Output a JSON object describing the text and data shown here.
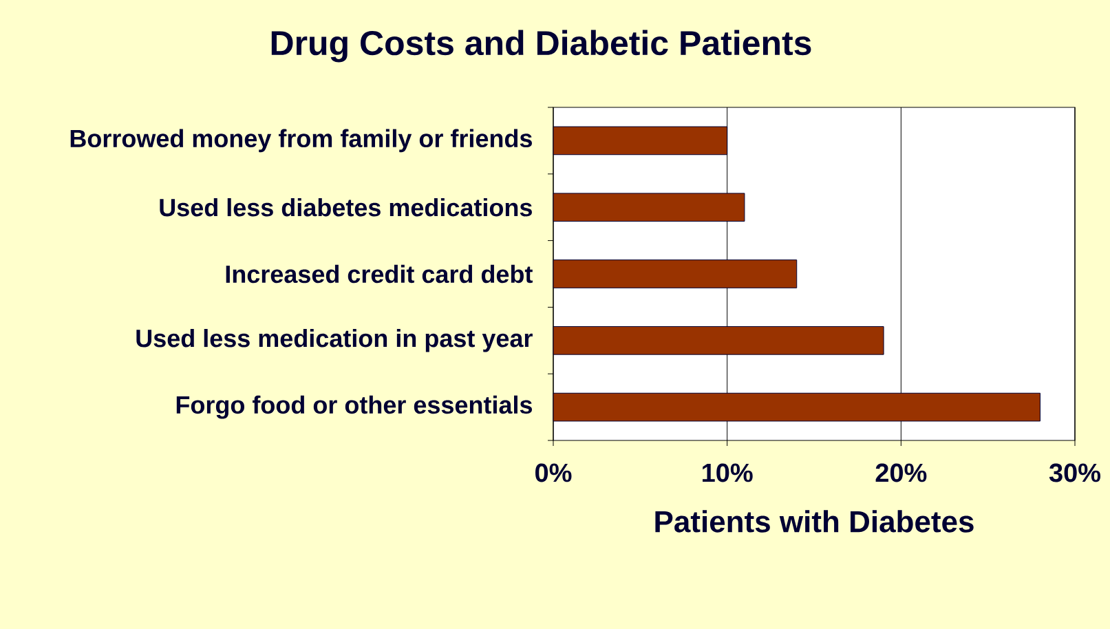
{
  "chart_data": {
    "type": "bar",
    "orientation": "horizontal",
    "title": "Drug Costs and Diabetic Patients",
    "xlabel": "Patients with Diabetes",
    "categories": [
      "Borrowed money from family or friends",
      "Used less diabetes medications",
      "Increased credit card debt",
      "Used less medication in past year",
      "Forgo food or other essentials"
    ],
    "values": [
      10,
      11,
      14,
      19,
      28
    ],
    "color": "#993300",
    "xlim": [
      0,
      30
    ],
    "xticks": [
      {
        "value": 0,
        "label": "0%"
      },
      {
        "value": 10,
        "label": "10%"
      },
      {
        "value": 20,
        "label": "20%"
      },
      {
        "value": 30,
        "label": "30%"
      }
    ],
    "grid": "x"
  }
}
